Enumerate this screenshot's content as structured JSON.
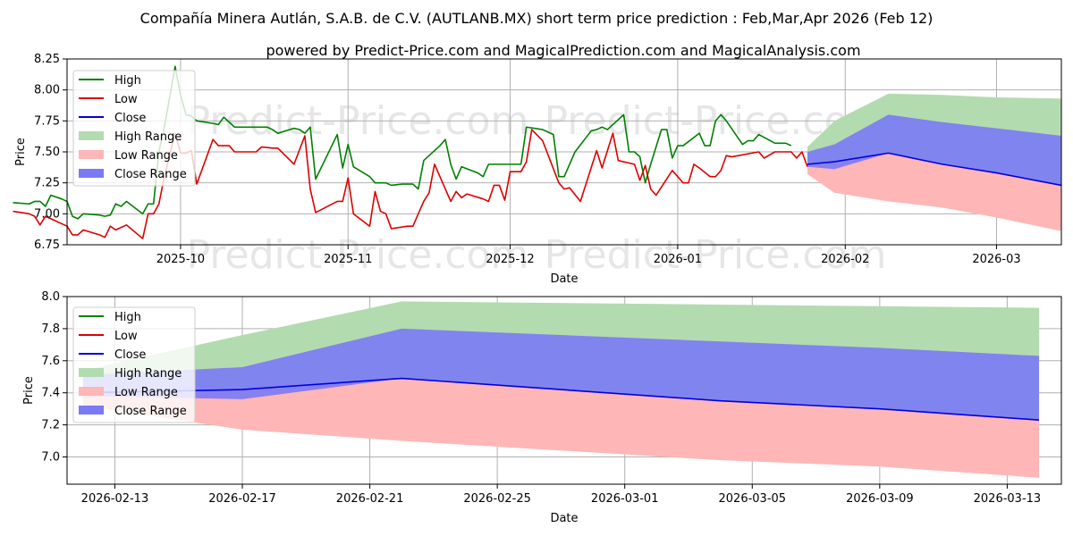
{
  "title_line1": "Compañía Minera Autlán, S.A.B. de C.V. (AUTLANB.MX) short term price prediction : Feb,Mar,Apr 2026 (Feb 12)",
  "title_line2": "powered by Predict-Price.com and MagicalPrediction.com and MagicalAnalysis.com",
  "watermark": "Predict-Price.com",
  "colors": {
    "high": "#008000",
    "low": "#dd0000",
    "close": "#0000dd",
    "high_range": "#b3dbb0",
    "low_range": "#ffb6b6",
    "close_range": "#7a7af5",
    "grid": "#b0b0b0"
  },
  "chart_data": [
    {
      "type": "line",
      "xlabel": "Date",
      "ylabel": "Price",
      "ylim": [
        6.75,
        8.25
      ],
      "yticks": [
        "6.75",
        "7.00",
        "7.25",
        "7.50",
        "7.75",
        "8.00",
        "8.25"
      ],
      "xticks": [
        "2025-10",
        "2025-11",
        "2025-12",
        "2026-01",
        "2026-02",
        "2026-03"
      ],
      "xtick_days": [
        21,
        52,
        82,
        113,
        144,
        172
      ],
      "xlim_days": [
        0,
        184
      ],
      "legend": [
        "High",
        "Low",
        "Close",
        "High Range",
        "Low Range",
        "Close Range"
      ],
      "series": [
        {
          "name": "High",
          "points": [
            [
              -10,
              7.09
            ],
            [
              -7,
              7.08
            ],
            [
              -6,
              7.1
            ],
            [
              -5,
              7.1
            ],
            [
              -4,
              7.06
            ],
            [
              -3,
              7.15
            ],
            [
              -1,
              7.12
            ],
            [
              0,
              7.1
            ],
            [
              1,
              6.98
            ],
            [
              2,
              6.96
            ],
            [
              3,
              7.0
            ],
            [
              6,
              6.99
            ],
            [
              7,
              6.98
            ],
            [
              8,
              6.99
            ],
            [
              9,
              7.08
            ],
            [
              10,
              7.06
            ],
            [
              11,
              7.1
            ],
            [
              14,
              7.0
            ],
            [
              15,
              7.08
            ],
            [
              16,
              7.08
            ],
            [
              17,
              7.5
            ],
            [
              18,
              7.7
            ],
            [
              20,
              8.19
            ],
            [
              21,
              7.96
            ],
            [
              22,
              7.8
            ],
            [
              23,
              7.79
            ],
            [
              24,
              7.75
            ],
            [
              27,
              7.73
            ],
            [
              28,
              7.72
            ],
            [
              29,
              7.78
            ],
            [
              31,
              7.7
            ],
            [
              35,
              7.7
            ],
            [
              37,
              7.7
            ],
            [
              38,
              7.68
            ],
            [
              39,
              7.65
            ],
            [
              42,
              7.69
            ],
            [
              43,
              7.68
            ],
            [
              44,
              7.65
            ],
            [
              45,
              7.7
            ],
            [
              46,
              7.28
            ],
            [
              50,
              7.64
            ],
            [
              51,
              7.37
            ],
            [
              52,
              7.56
            ],
            [
              53,
              7.38
            ],
            [
              56,
              7.3
            ],
            [
              57,
              7.25
            ],
            [
              59,
              7.25
            ],
            [
              60,
              7.23
            ],
            [
              62,
              7.24
            ],
            [
              64,
              7.24
            ],
            [
              65,
              7.2
            ],
            [
              66,
              7.43
            ],
            [
              69,
              7.55
            ],
            [
              70,
              7.6
            ],
            [
              71,
              7.4
            ],
            [
              72,
              7.28
            ],
            [
              73,
              7.38
            ],
            [
              76,
              7.33
            ],
            [
              77,
              7.3
            ],
            [
              78,
              7.4
            ],
            [
              84,
              7.4
            ],
            [
              85,
              7.7
            ],
            [
              88,
              7.68
            ],
            [
              90,
              7.64
            ],
            [
              91,
              7.3
            ],
            [
              92,
              7.3
            ],
            [
              94,
              7.5
            ],
            [
              97,
              7.67
            ],
            [
              98,
              7.68
            ],
            [
              99,
              7.7
            ],
            [
              100,
              7.68
            ],
            [
              103,
              7.8
            ],
            [
              104,
              7.5
            ],
            [
              105,
              7.5
            ],
            [
              106,
              7.46
            ],
            [
              107,
              7.25
            ],
            [
              108,
              7.4
            ],
            [
              110,
              7.68
            ],
            [
              111,
              7.68
            ],
            [
              112,
              7.45
            ],
            [
              113,
              7.55
            ],
            [
              114,
              7.55
            ],
            [
              117,
              7.65
            ],
            [
              118,
              7.55
            ],
            [
              119,
              7.55
            ],
            [
              120,
              7.75
            ],
            [
              121,
              7.8
            ],
            [
              122,
              7.75
            ],
            [
              125,
              7.56
            ],
            [
              126,
              7.59
            ],
            [
              127,
              7.59
            ],
            [
              128,
              7.64
            ],
            [
              131,
              7.57
            ],
            [
              133,
              7.57
            ],
            [
              134,
              7.55
            ]
          ]
        },
        {
          "name": "Low",
          "points": [
            [
              -10,
              7.02
            ],
            [
              -7,
              7.0
            ],
            [
              -6,
              6.98
            ],
            [
              -5,
              6.91
            ],
            [
              -4,
              6.98
            ],
            [
              -3,
              6.96
            ],
            [
              0,
              6.9
            ],
            [
              1,
              6.83
            ],
            [
              2,
              6.83
            ],
            [
              3,
              6.87
            ],
            [
              6,
              6.83
            ],
            [
              7,
              6.81
            ],
            [
              8,
              6.9
            ],
            [
              9,
              6.87
            ],
            [
              11,
              6.91
            ],
            [
              14,
              6.8
            ],
            [
              15,
              7.0
            ],
            [
              16,
              7.0
            ],
            [
              17,
              7.08
            ],
            [
              18,
              7.3
            ],
            [
              20,
              7.65
            ],
            [
              21,
              7.49
            ],
            [
              22,
              7.49
            ],
            [
              23,
              7.51
            ],
            [
              24,
              7.24
            ],
            [
              27,
              7.6
            ],
            [
              28,
              7.55
            ],
            [
              30,
              7.55
            ],
            [
              31,
              7.5
            ],
            [
              35,
              7.5
            ],
            [
              36,
              7.54
            ],
            [
              38,
              7.53
            ],
            [
              39,
              7.53
            ],
            [
              42,
              7.4
            ],
            [
              44,
              7.63
            ],
            [
              45,
              7.2
            ],
            [
              46,
              7.01
            ],
            [
              50,
              7.1
            ],
            [
              51,
              7.1
            ],
            [
              52,
              7.29
            ],
            [
              53,
              7.0
            ],
            [
              56,
              6.9
            ],
            [
              57,
              7.18
            ],
            [
              58,
              7.02
            ],
            [
              59,
              7.0
            ],
            [
              60,
              6.88
            ],
            [
              63,
              6.9
            ],
            [
              64,
              6.9
            ],
            [
              66,
              7.1
            ],
            [
              67,
              7.17
            ],
            [
              68,
              7.4
            ],
            [
              71,
              7.1
            ],
            [
              72,
              7.18
            ],
            [
              73,
              7.13
            ],
            [
              74,
              7.16
            ],
            [
              77,
              7.12
            ],
            [
              78,
              7.1
            ],
            [
              79,
              7.23
            ],
            [
              80,
              7.23
            ],
            [
              81,
              7.11
            ],
            [
              82,
              7.34
            ],
            [
              84,
              7.34
            ],
            [
              85,
              7.42
            ],
            [
              86,
              7.68
            ],
            [
              88,
              7.59
            ],
            [
              91,
              7.25
            ],
            [
              92,
              7.2
            ],
            [
              93,
              7.21
            ],
            [
              95,
              7.1
            ],
            [
              98,
              7.51
            ],
            [
              99,
              7.37
            ],
            [
              101,
              7.65
            ],
            [
              102,
              7.43
            ],
            [
              105,
              7.4
            ],
            [
              106,
              7.27
            ],
            [
              107,
              7.39
            ],
            [
              108,
              7.2
            ],
            [
              109,
              7.15
            ],
            [
              112,
              7.35
            ],
            [
              114,
              7.25
            ],
            [
              115,
              7.25
            ],
            [
              116,
              7.4
            ],
            [
              117,
              7.37
            ],
            [
              119,
              7.3
            ],
            [
              120,
              7.3
            ],
            [
              121,
              7.35
            ],
            [
              122,
              7.47
            ],
            [
              123,
              7.46
            ],
            [
              128,
              7.5
            ],
            [
              129,
              7.45
            ],
            [
              131,
              7.5
            ],
            [
              134,
              7.5
            ],
            [
              135,
              7.45
            ],
            [
              136,
              7.5
            ],
            [
              137,
              7.38
            ]
          ]
        },
        {
          "name": "Close",
          "points": [
            [
              137,
              7.4
            ],
            [
              142,
              7.42
            ],
            [
              152,
              7.49
            ],
            [
              162,
              7.4
            ],
            [
              172,
              7.33
            ],
            [
              184,
              7.23
            ]
          ]
        },
        {
          "name": "High Range",
          "points": [
            [
              137,
              7.54,
              7.4
            ],
            [
              142,
              7.75,
              7.42
            ],
            [
              152,
              7.97,
              7.49
            ],
            [
              162,
              7.96,
              7.4
            ],
            [
              172,
              7.94,
              7.33
            ],
            [
              184,
              7.93,
              7.23
            ]
          ]
        },
        {
          "name": "Low Range",
          "points": [
            [
              137,
              7.4,
              7.32
            ],
            [
              142,
              7.4,
              7.17
            ],
            [
              152,
              7.49,
              7.1
            ],
            [
              162,
              7.4,
              7.05
            ],
            [
              172,
              7.33,
              6.97
            ],
            [
              184,
              7.23,
              6.86
            ]
          ]
        },
        {
          "name": "Close Range",
          "points": [
            [
              137,
              7.5,
              7.38
            ],
            [
              142,
              7.56,
              7.36
            ],
            [
              152,
              7.8,
              7.49
            ],
            [
              162,
              7.74,
              7.4
            ],
            [
              172,
              7.69,
              7.33
            ],
            [
              184,
              7.63,
              7.23
            ]
          ]
        }
      ]
    },
    {
      "type": "line",
      "xlabel": "Date",
      "ylabel": "Price",
      "ylim": [
        6.83,
        8.0
      ],
      "yticks": [
        "7.0",
        "7.2",
        "7.4",
        "7.6",
        "7.8",
        "8.0"
      ],
      "xticks": [
        "2026-02-13",
        "2026-02-17",
        "2026-02-21",
        "2026-02-25",
        "2026-03-01",
        "2026-03-05",
        "2026-03-09",
        "2026-03-13"
      ],
      "xtick_days": [
        1,
        5,
        9,
        13,
        17,
        21,
        25,
        29
      ],
      "xlim_days": [
        -0.5,
        30.7
      ],
      "legend": [
        "High",
        "Low",
        "Close",
        "High Range",
        "Low Range",
        "Close Range"
      ],
      "series": [
        {
          "name": "Close",
          "points": [
            [
              0,
              7.4
            ],
            [
              5,
              7.42
            ],
            [
              10,
              7.49
            ],
            [
              20,
              7.35
            ],
            [
              25,
              7.3
            ],
            [
              30,
              7.23
            ]
          ]
        },
        {
          "name": "High Range",
          "points": [
            [
              0,
              7.54,
              7.4
            ],
            [
              5,
              7.76,
              7.42
            ],
            [
              10,
              7.97,
              7.49
            ],
            [
              20,
              7.95,
              7.35
            ],
            [
              25,
              7.94,
              7.3
            ],
            [
              30,
              7.93,
              7.23
            ]
          ]
        },
        {
          "name": "Low Range",
          "points": [
            [
              0,
              7.4,
              7.32
            ],
            [
              5,
              7.42,
              7.17
            ],
            [
              10,
              7.49,
              7.1
            ],
            [
              20,
              7.35,
              6.98
            ],
            [
              25,
              7.3,
              6.94
            ],
            [
              30,
              7.23,
              6.87
            ]
          ]
        },
        {
          "name": "Close Range",
          "points": [
            [
              0,
              7.51,
              7.38
            ],
            [
              5,
              7.56,
              7.36
            ],
            [
              10,
              7.8,
              7.49
            ],
            [
              20,
              7.72,
              7.35
            ],
            [
              25,
              7.68,
              7.3
            ],
            [
              30,
              7.63,
              7.23
            ]
          ]
        }
      ]
    }
  ]
}
